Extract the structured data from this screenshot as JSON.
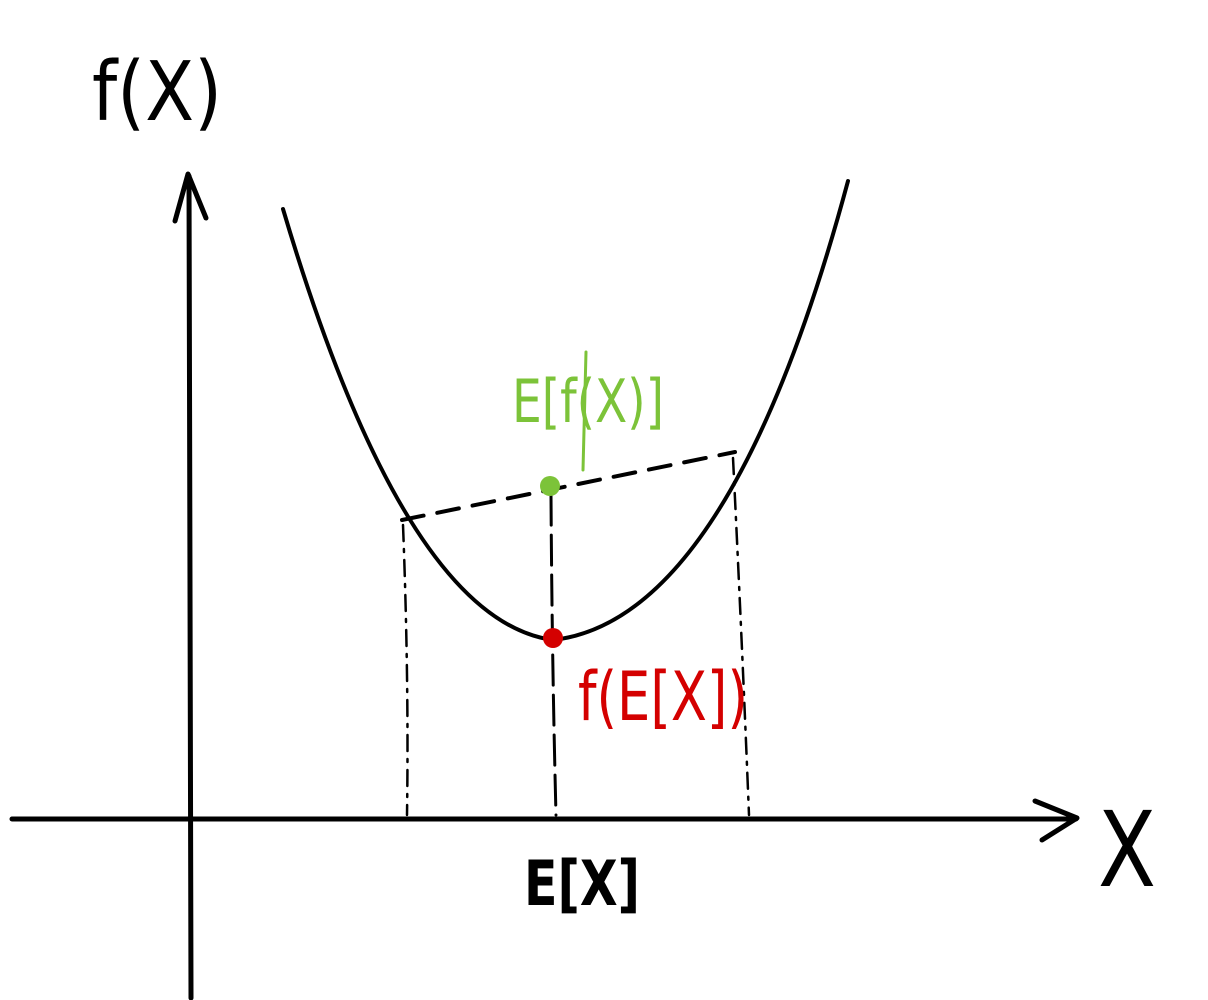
{
  "labels": {
    "y_axis": "f(X)",
    "x_axis": "X",
    "expected_x": "E[X]",
    "expectation_of_f": "E[f(X)]",
    "f_of_expectation": "f(E[X])"
  },
  "colors": {
    "ink": "#000000",
    "expectation_of_f": "#7cc339",
    "f_of_expectation": "#d40000"
  }
}
